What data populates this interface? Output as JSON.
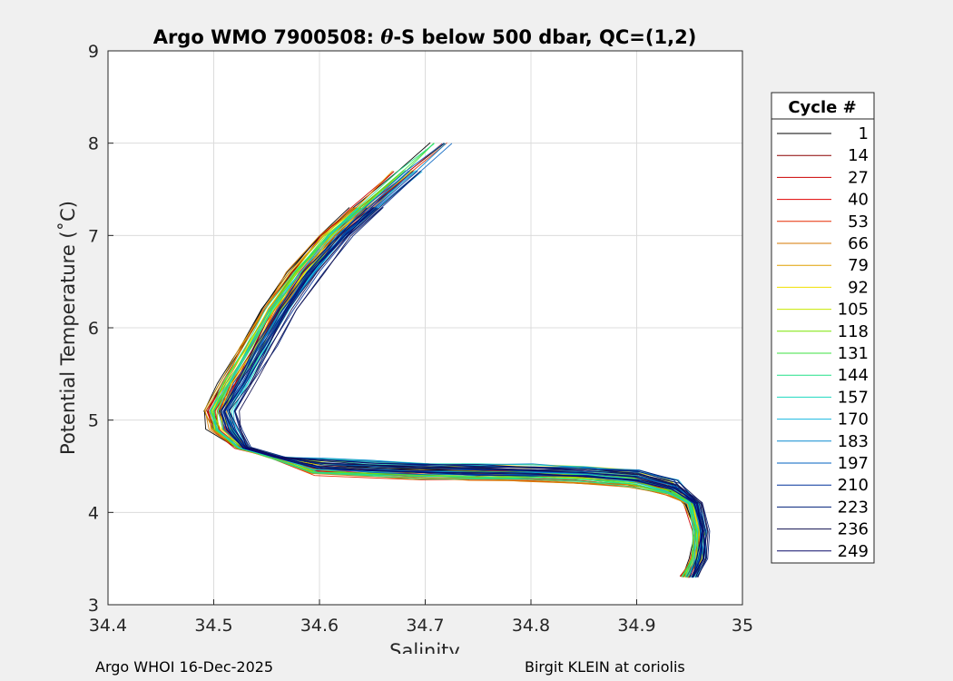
{
  "chart_data": {
    "type": "line",
    "title_prefix": "Argo WMO 7900508: ",
    "title_theta": "θ",
    "title_suffix": "-S below 500 dbar,  QC=(1,2)",
    "xlabel": "Salinity",
    "ylabel": "Potential Temperature (˚C)",
    "xlim": [
      34.4,
      35
    ],
    "ylim": [
      3,
      9
    ],
    "xticks": [
      "34.4",
      "34.5",
      "34.6",
      "34.7",
      "34.8",
      "34.9",
      "35"
    ],
    "yticks": [
      "3",
      "4",
      "5",
      "6",
      "7",
      "8",
      "9"
    ],
    "grid": true,
    "legend_title": "Cycle #",
    "legend_placement": "right",
    "legend_entries": [
      "1",
      "14",
      "27",
      "40",
      "53",
      "66",
      "79",
      "92",
      "105",
      "118",
      "131",
      "144",
      "157",
      "170",
      "183",
      "197",
      "210",
      "223",
      "236",
      "249"
    ],
    "legend_colors": [
      "#000000",
      "#8b0000",
      "#cc0000",
      "#e00000",
      "#e52b00",
      "#d47a00",
      "#e0a000",
      "#f0e000",
      "#c8ea00",
      "#7ae600",
      "#3ee040",
      "#22e088",
      "#1ed8c0",
      "#18b8e0",
      "#0a8ad0",
      "#0060c0",
      "#00309a",
      "#00207a",
      "#101050",
      "#0a0a6a"
    ],
    "series_path_theta_s": [
      [
        8.0,
        34.72
      ],
      [
        7.7,
        34.69
      ],
      [
        7.3,
        34.65
      ],
      [
        7.0,
        34.62
      ],
      [
        6.6,
        34.59
      ],
      [
        6.2,
        34.565
      ],
      [
        5.8,
        34.545
      ],
      [
        5.4,
        34.525
      ],
      [
        5.1,
        34.51
      ],
      [
        4.9,
        34.515
      ],
      [
        4.7,
        34.53
      ],
      [
        4.6,
        34.56
      ],
      [
        4.53,
        34.6
      ],
      [
        4.5,
        34.65
      ],
      [
        4.48,
        34.7
      ],
      [
        4.47,
        34.75
      ],
      [
        4.46,
        34.8
      ],
      [
        4.44,
        34.85
      ],
      [
        4.4,
        34.9
      ],
      [
        4.3,
        34.935
      ],
      [
        4.1,
        34.955
      ],
      [
        3.8,
        34.962
      ],
      [
        3.5,
        34.96
      ],
      [
        3.3,
        34.952
      ]
    ]
  },
  "footer": {
    "left": "Argo WHOI 16-Dec-2025",
    "right": "Birgit KLEIN at coriolis"
  }
}
